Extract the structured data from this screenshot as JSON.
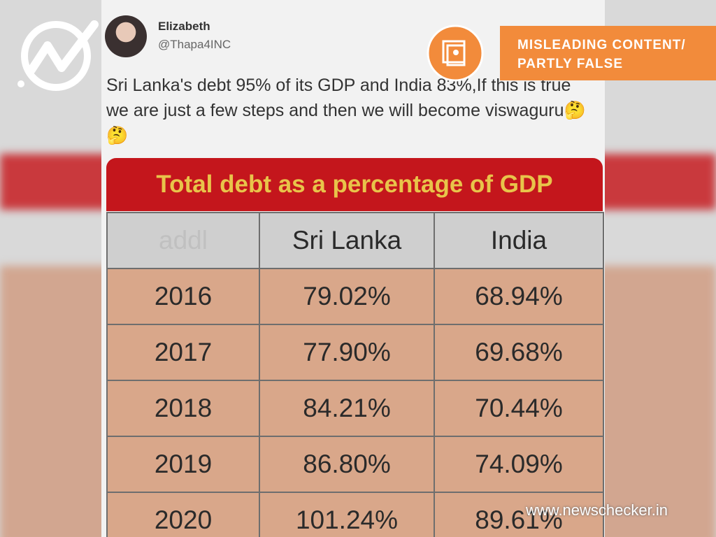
{
  "tweet": {
    "name": "Elizabeth",
    "handle": "@Thapa4INC",
    "text": "Sri Lanka's debt 95% of its GDP and India 83%,If this is true we are just a few steps and then we will become viswaguru🤔🤔"
  },
  "badge": {
    "lines": [
      "MISLEADING CONTENT/",
      "PARTLY FALSE"
    ]
  },
  "table": {
    "title": "Total debt as a percentage of GDP",
    "header": [
      "addl",
      "Sri Lanka",
      "India"
    ],
    "rows": [
      [
        "2016",
        "79.02%",
        "68.94%"
      ],
      [
        "2017",
        "77.90%",
        "69.68%"
      ],
      [
        "2018",
        "84.21%",
        "70.44%"
      ],
      [
        "2019",
        "86.80%",
        "74.09%"
      ],
      [
        "2020",
        "101.24%",
        "89.61%"
      ]
    ]
  },
  "footer": {
    "site": "www.newschecker.in"
  }
}
